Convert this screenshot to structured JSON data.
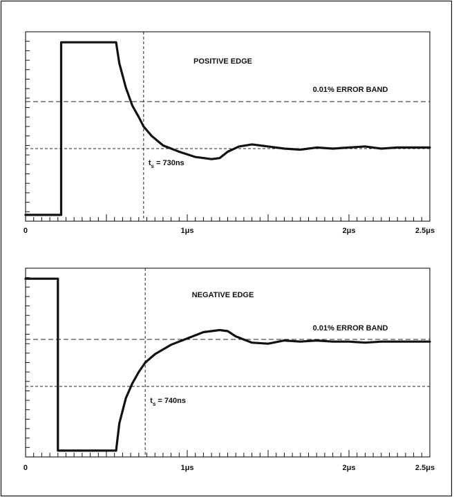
{
  "chart_data": [
    {
      "type": "line",
      "title": "POSITIVE EDGE",
      "band_label": "0.01% ERROR BAND",
      "settling_label": "t",
      "settling_sub": "s",
      "settling_value": " = 730ns",
      "settling_time_us": 0.73,
      "xlim": [
        0,
        2.5
      ],
      "x_ticks": [
        {
          "x": 0,
          "label": "0"
        },
        {
          "x": 1,
          "label": "1μs"
        },
        {
          "x": 2,
          "label": "2μs"
        },
        {
          "x": 2.5,
          "label": "2.5μs"
        }
      ],
      "series": [
        {
          "x": [
            0.0,
            0.22,
            0.22,
            0.56,
            0.58,
            0.62,
            0.66,
            0.7,
            0.73,
            0.78,
            0.85,
            0.95,
            1.05,
            1.15,
            1.2,
            1.25,
            1.32,
            1.4,
            1.5,
            1.6,
            1.7,
            1.8,
            1.9,
            2.0,
            2.1,
            2.2,
            2.3,
            2.4,
            2.5
          ],
          "y": [
            -4.2,
            -4.2,
            4.0,
            4.0,
            3.0,
            1.85,
            1.0,
            0.45,
            0.0,
            -0.45,
            -0.9,
            -1.2,
            -1.45,
            -1.55,
            -1.5,
            -1.2,
            -0.95,
            -0.85,
            -0.95,
            -1.05,
            -1.1,
            -1.0,
            -1.05,
            -1.0,
            -0.95,
            -1.05,
            -1.0,
            -1.0,
            -1.0
          ]
        }
      ]
    },
    {
      "type": "line",
      "title": "NEGATIVE EDGE",
      "band_label": "0.01% ERROR BAND",
      "settling_label": "t",
      "settling_sub": "s",
      "settling_value": " = 740ns",
      "settling_time_us": 0.74,
      "xlim": [
        0,
        2.5
      ],
      "x_ticks": [
        {
          "x": 0,
          "label": "0"
        },
        {
          "x": 1,
          "label": "1μs"
        },
        {
          "x": 2,
          "label": "2μs"
        },
        {
          "x": 2.5,
          "label": "2.5μs"
        }
      ],
      "series": [
        {
          "x": [
            0.0,
            0.2,
            0.2,
            0.56,
            0.58,
            0.62,
            0.66,
            0.7,
            0.74,
            0.8,
            0.9,
            1.0,
            1.1,
            1.2,
            1.25,
            1.3,
            1.4,
            1.5,
            1.6,
            1.7,
            1.8,
            1.9,
            2.0,
            2.1,
            2.2,
            2.3,
            2.4,
            2.5
          ],
          "y": [
            4.0,
            4.0,
            -4.2,
            -4.2,
            -2.9,
            -1.7,
            -1.0,
            -0.45,
            0.0,
            0.4,
            0.85,
            1.15,
            1.45,
            1.55,
            1.5,
            1.25,
            0.95,
            0.9,
            1.05,
            1.0,
            1.05,
            1.0,
            1.0,
            0.95,
            1.0,
            1.0,
            1.0,
            1.0
          ]
        }
      ]
    }
  ]
}
